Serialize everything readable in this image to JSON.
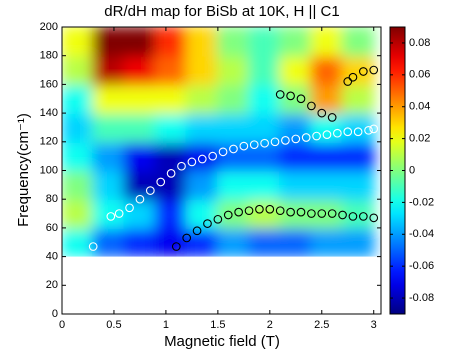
{
  "chart_data": {
    "type": "heatmap",
    "title": "dR/dH map for BiSb at 10K, H || C1",
    "xlabel": "Magnetic field (T)",
    "ylabel": "Frequency(cm⁻¹)",
    "xlim": [
      0,
      3.07
    ],
    "ylim": [
      0,
      200
    ],
    "xticks": [
      0,
      0.5,
      1,
      1.5,
      2,
      2.5,
      3
    ],
    "yticks": [
      0,
      20,
      40,
      60,
      80,
      100,
      120,
      140,
      160,
      180,
      200
    ],
    "colormap": "jet",
    "clim": [
      -0.09,
      0.09
    ],
    "cticks": [
      -0.08,
      -0.06,
      -0.04,
      -0.02,
      0,
      0.02,
      0.04,
      0.06,
      0.08
    ],
    "x": [
      0.15,
      0.45,
      0.75,
      1.05,
      1.35,
      1.65,
      1.95,
      2.25,
      2.55,
      2.85
    ],
    "y": [
      50,
      70,
      90,
      110,
      130,
      150,
      170,
      190
    ],
    "z": [
      [
        -0.02,
        -0.05,
        -0.06,
        -0.07,
        -0.06,
        -0.04,
        -0.05,
        -0.05,
        -0.04,
        -0.04
      ],
      [
        0.01,
        -0.02,
        -0.03,
        -0.06,
        -0.02,
        0.0,
        0.01,
        0.0,
        0.0,
        -0.01
      ],
      [
        0.0,
        -0.03,
        -0.08,
        -0.08,
        -0.04,
        -0.02,
        -0.02,
        -0.03,
        -0.03,
        -0.03
      ],
      [
        -0.02,
        -0.04,
        -0.07,
        -0.08,
        -0.07,
        -0.05,
        -0.05,
        -0.06,
        -0.06,
        -0.06
      ],
      [
        -0.03,
        -0.01,
        -0.01,
        -0.02,
        -0.03,
        -0.03,
        -0.03,
        -0.04,
        -0.02,
        -0.03
      ],
      [
        -0.02,
        0.02,
        0.02,
        0.02,
        0.01,
        0.0,
        -0.02,
        0.0,
        0.04,
        0.01
      ],
      [
        0.01,
        0.08,
        0.07,
        0.05,
        0.03,
        0.01,
        -0.01,
        0.02,
        0.05,
        0.03
      ],
      [
        0.02,
        0.09,
        0.09,
        0.06,
        0.03,
        0.0,
        -0.01,
        0.0,
        0.02,
        0.0
      ]
    ],
    "markers": [
      {
        "color": "#ffffff",
        "x": [
          0.3,
          0.47,
          0.55,
          0.65,
          0.75,
          0.85,
          0.95,
          1.05,
          1.15,
          1.25,
          1.35,
          1.45,
          1.55,
          1.65,
          1.75,
          1.85,
          1.95,
          2.05,
          2.15,
          2.25,
          2.35,
          2.45,
          2.55,
          2.65,
          2.75,
          2.85,
          2.95,
          3.0
        ],
        "values": [
          47,
          68,
          70,
          74,
          80,
          86,
          92,
          98,
          103,
          106,
          108,
          110,
          113,
          115,
          117,
          118,
          119,
          120,
          121,
          122,
          123,
          124,
          125,
          126,
          127,
          127,
          128,
          129
        ]
      },
      {
        "color": "#000000",
        "x": [
          1.1,
          1.2,
          1.3,
          1.4,
          1.5,
          1.6,
          1.7,
          1.8,
          1.9,
          2.0,
          2.1,
          2.2,
          2.3,
          2.4,
          2.5,
          2.6,
          2.7,
          2.8,
          2.9,
          3.0
        ],
        "values": [
          47,
          53,
          58,
          63,
          66,
          69,
          71,
          72,
          73,
          73,
          72,
          71,
          71,
          70,
          70,
          70,
          69,
          68,
          68,
          67
        ]
      },
      {
        "color": "#000000",
        "x": [
          2.1,
          2.2,
          2.3,
          2.4,
          2.5,
          2.6,
          2.75,
          2.8,
          2.9,
          3.0
        ],
        "values": [
          153,
          152,
          150,
          145,
          140,
          137,
          162,
          165,
          169,
          170
        ]
      }
    ]
  }
}
